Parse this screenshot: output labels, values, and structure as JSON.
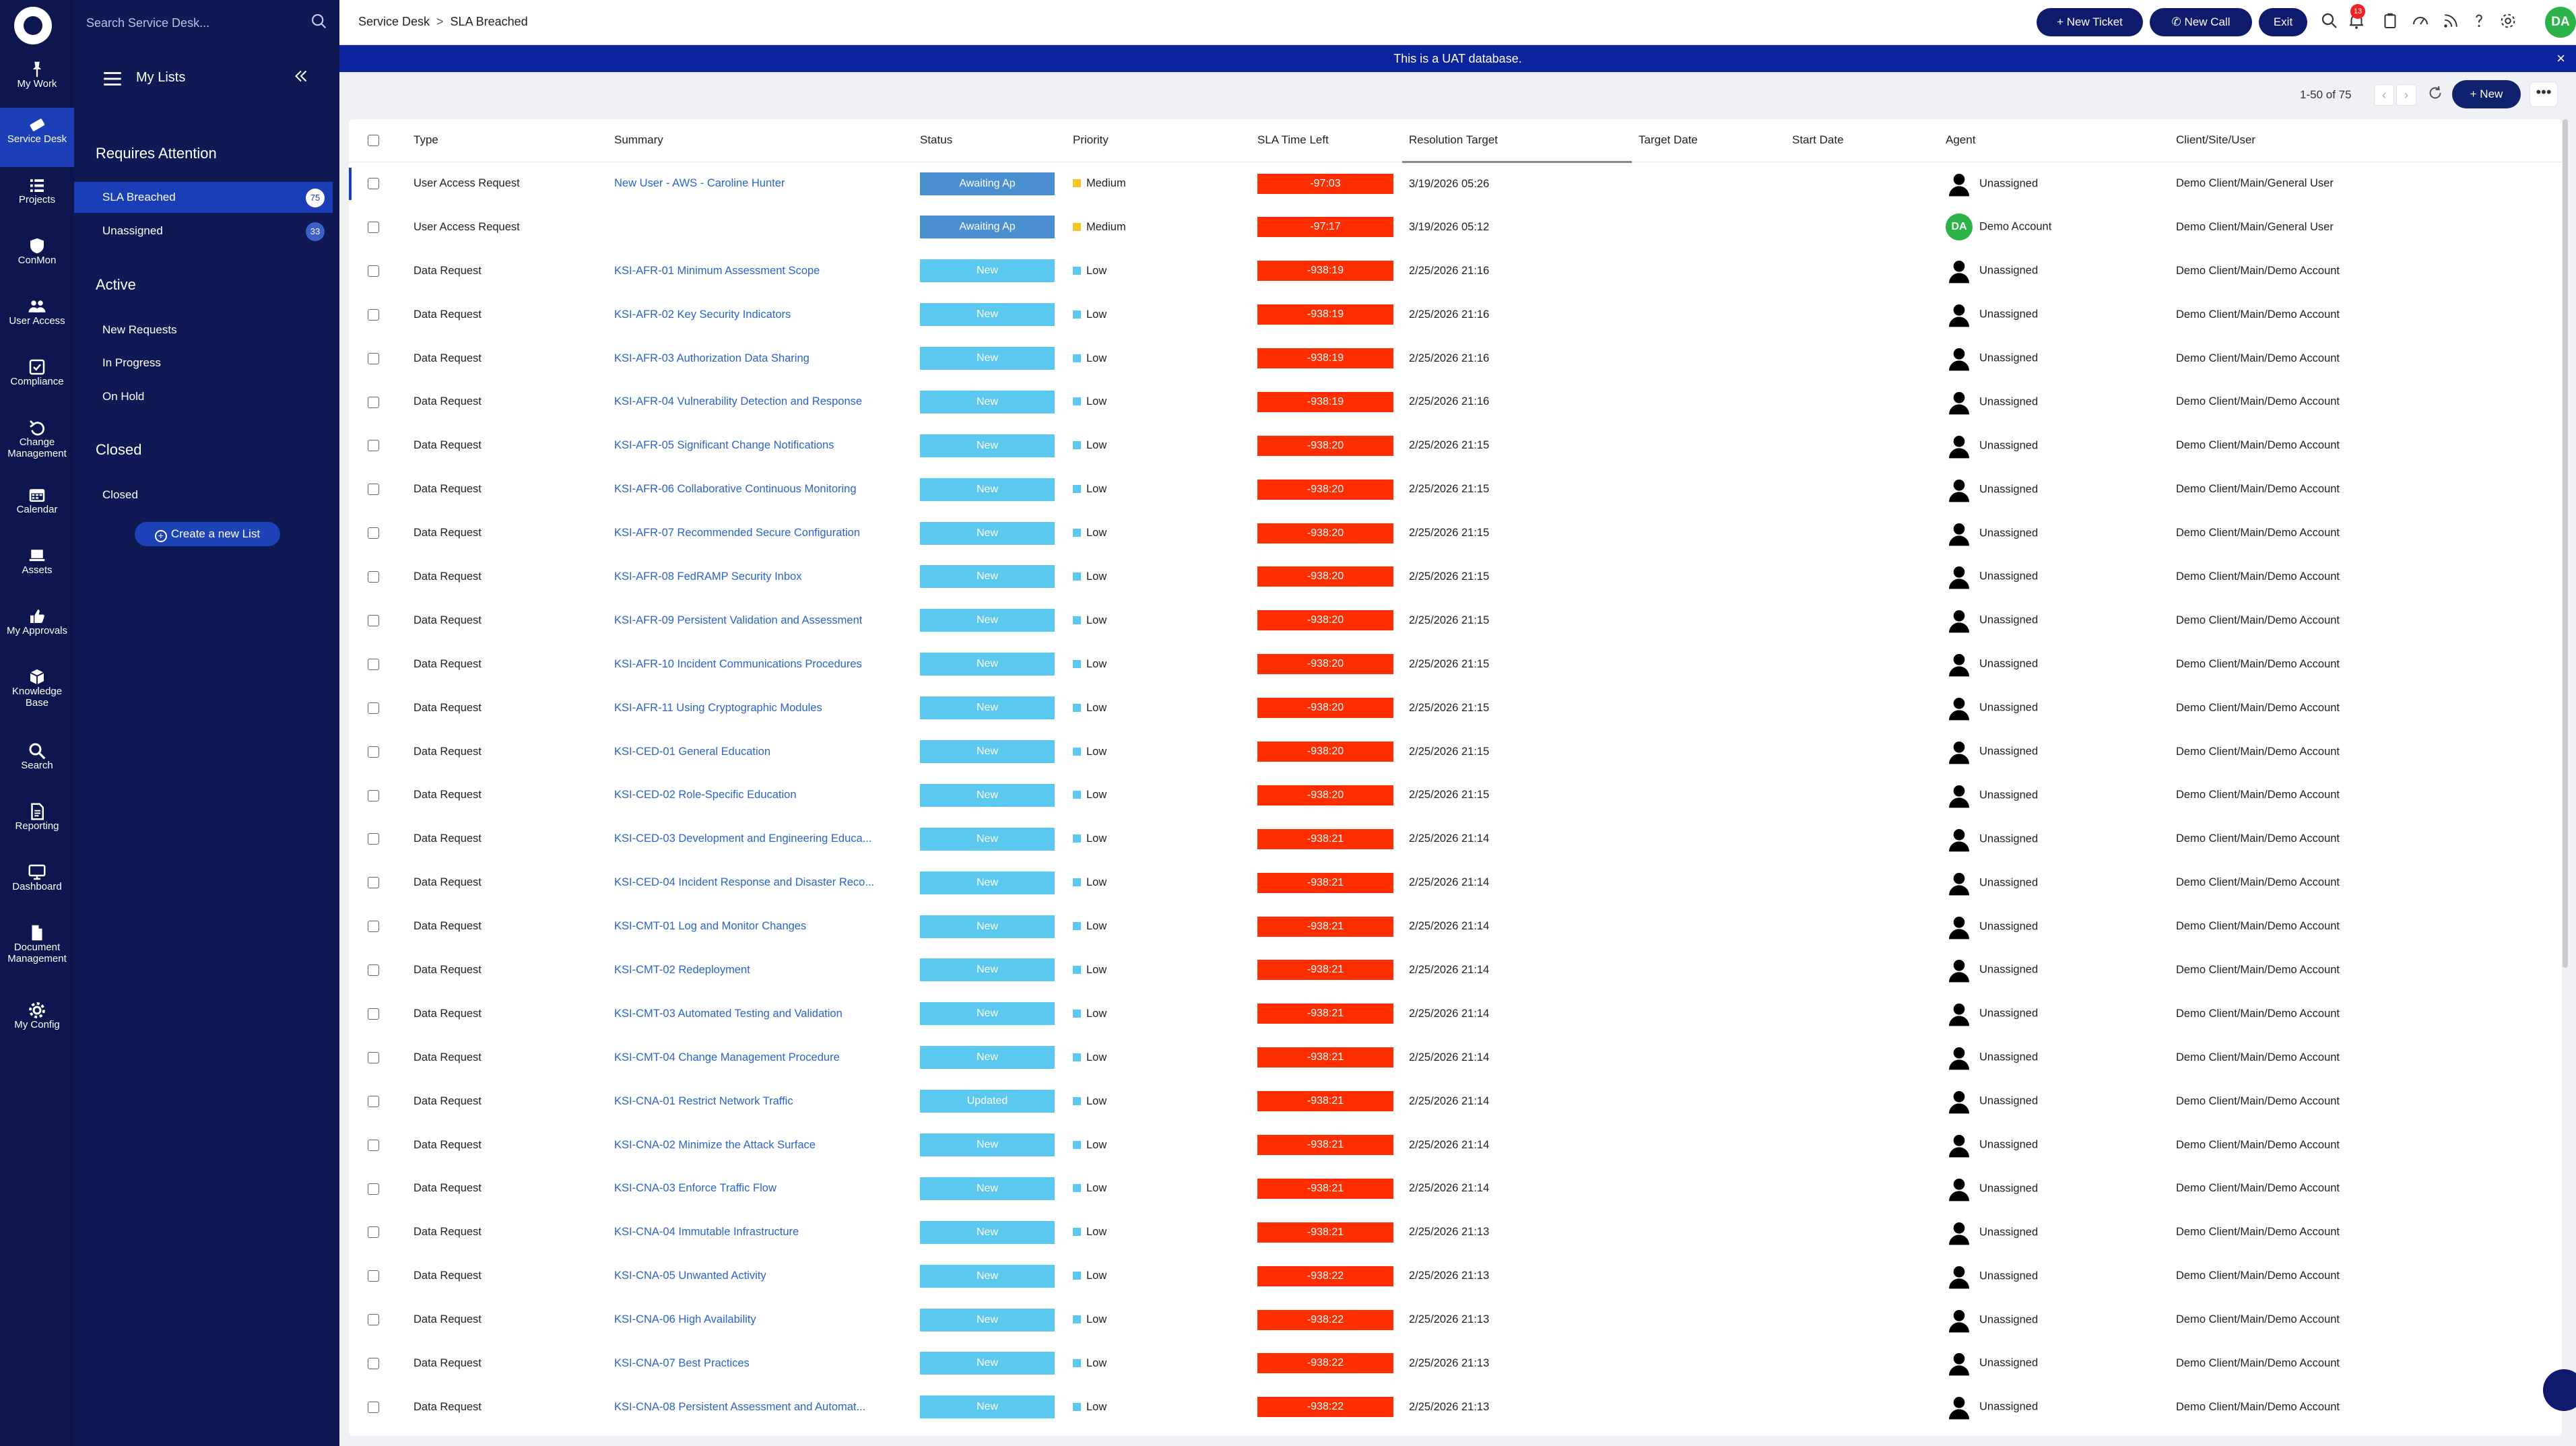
{
  "rail": [
    {
      "label": "My Work",
      "icon": "pin-icon"
    },
    {
      "label": "Service Desk",
      "icon": "ticket-icon",
      "active": true
    },
    {
      "label": "Projects",
      "icon": "list-icon"
    },
    {
      "label": "ConMon",
      "icon": "shield-icon"
    },
    {
      "label": "User Access",
      "icon": "users-icon"
    },
    {
      "label": "Compliance",
      "icon": "checkbox-icon"
    },
    {
      "label": "Change Management",
      "icon": "undo-icon"
    },
    {
      "label": "Calendar",
      "icon": "calendar-icon"
    },
    {
      "label": "Assets",
      "icon": "laptop-icon"
    },
    {
      "label": "My Approvals",
      "icon": "thumbs-up-icon"
    },
    {
      "label": "Knowledge Base",
      "icon": "cube-icon"
    },
    {
      "label": "Search",
      "icon": "search-icon"
    },
    {
      "label": "Reporting",
      "icon": "report-icon"
    },
    {
      "label": "Dashboard",
      "icon": "monitor-icon"
    },
    {
      "label": "Document Management",
      "icon": "document-icon"
    },
    {
      "label": "My Config",
      "icon": "gear-icon"
    }
  ],
  "lists_panel": {
    "search_placeholder": "Search Service Desk...",
    "title": "My Lists",
    "sections": {
      "requires_attention": "Requires Attention",
      "active": "Active",
      "closed": "Closed"
    },
    "requires_attention_items": [
      {
        "label": "SLA Breached",
        "count": "75",
        "active": true
      },
      {
        "label": "Unassigned",
        "count": "33"
      }
    ],
    "active_items": [
      {
        "label": "New Requests"
      },
      {
        "label": "In Progress"
      },
      {
        "label": "On Hold"
      }
    ],
    "closed_items": [
      {
        "label": "Closed"
      }
    ],
    "create_label": "Create a new List"
  },
  "topbar": {
    "breadcrumb_root": "Service Desk",
    "breadcrumb_sep": ">",
    "breadcrumb_current": "SLA Breached",
    "new_ticket": "+ New Ticket",
    "new_call": "New Call",
    "exit": "Exit",
    "notification_count": "13",
    "avatar_initials": "DA"
  },
  "banner": {
    "text": "This is a UAT database.",
    "close": "×"
  },
  "toolbar": {
    "pager": "1-50 of 75",
    "new_label": "+ New",
    "more": "•••",
    "prev": "‹",
    "next": "›"
  },
  "table": {
    "headers": [
      "Type",
      "Summary",
      "Status",
      "Priority",
      "SLA Time Left",
      "Resolution Target",
      "Target Date",
      "Start Date",
      "Agent",
      "Client/Site/User"
    ],
    "rows": [
      {
        "type": "User Access Request",
        "summary": "New User - AWS - Caroline Hunter",
        "status": "Awaiting Ap",
        "priority": "Medium",
        "sla": "-97:03",
        "resolution": "3/19/2026 05:26",
        "agent": "Unassigned",
        "client": "Demo Client/Main/General User",
        "selected": true
      },
      {
        "type": "User Access Request",
        "summary": "",
        "status": "Awaiting Ap",
        "priority": "Medium",
        "sla": "-97:17",
        "resolution": "3/19/2026 05:12",
        "agent": "Demo Account",
        "client": "Demo Client/Main/General User",
        "agent_avatar": "DA"
      },
      {
        "type": "Data Request",
        "summary": "KSI-AFR-01 Minimum Assessment Scope",
        "status": "New",
        "priority": "Low",
        "sla": "-938:19",
        "resolution": "2/25/2026 21:16",
        "agent": "Unassigned",
        "client": "Demo Client/Main/Demo Account"
      },
      {
        "type": "Data Request",
        "summary": "KSI-AFR-02 Key Security Indicators",
        "status": "New",
        "priority": "Low",
        "sla": "-938:19",
        "resolution": "2/25/2026 21:16",
        "agent": "Unassigned",
        "client": "Demo Client/Main/Demo Account"
      },
      {
        "type": "Data Request",
        "summary": "KSI-AFR-03 Authorization Data Sharing",
        "status": "New",
        "priority": "Low",
        "sla": "-938:19",
        "resolution": "2/25/2026 21:16",
        "agent": "Unassigned",
        "client": "Demo Client/Main/Demo Account"
      },
      {
        "type": "Data Request",
        "summary": "KSI-AFR-04 Vulnerability Detection and Response",
        "status": "New",
        "priority": "Low",
        "sla": "-938:19",
        "resolution": "2/25/2026 21:16",
        "agent": "Unassigned",
        "client": "Demo Client/Main/Demo Account"
      },
      {
        "type": "Data Request",
        "summary": "KSI-AFR-05 Significant Change Notifications",
        "status": "New",
        "priority": "Low",
        "sla": "-938:20",
        "resolution": "2/25/2026 21:15",
        "agent": "Unassigned",
        "client": "Demo Client/Main/Demo Account"
      },
      {
        "type": "Data Request",
        "summary": "KSI-AFR-06 Collaborative Continuous Monitoring",
        "status": "New",
        "priority": "Low",
        "sla": "-938:20",
        "resolution": "2/25/2026 21:15",
        "agent": "Unassigned",
        "client": "Demo Client/Main/Demo Account"
      },
      {
        "type": "Data Request",
        "summary": "KSI-AFR-07 Recommended Secure Configuration",
        "status": "New",
        "priority": "Low",
        "sla": "-938:20",
        "resolution": "2/25/2026 21:15",
        "agent": "Unassigned",
        "client": "Demo Client/Main/Demo Account"
      },
      {
        "type": "Data Request",
        "summary": "KSI-AFR-08 FedRAMP Security Inbox",
        "status": "New",
        "priority": "Low",
        "sla": "-938:20",
        "resolution": "2/25/2026 21:15",
        "agent": "Unassigned",
        "client": "Demo Client/Main/Demo Account"
      },
      {
        "type": "Data Request",
        "summary": "KSI-AFR-09 Persistent Validation and Assessment",
        "status": "New",
        "priority": "Low",
        "sla": "-938:20",
        "resolution": "2/25/2026 21:15",
        "agent": "Unassigned",
        "client": "Demo Client/Main/Demo Account"
      },
      {
        "type": "Data Request",
        "summary": "KSI-AFR-10 Incident Communications Procedures",
        "status": "New",
        "priority": "Low",
        "sla": "-938:20",
        "resolution": "2/25/2026 21:15",
        "agent": "Unassigned",
        "client": "Demo Client/Main/Demo Account"
      },
      {
        "type": "Data Request",
        "summary": "KSI-AFR-11 Using Cryptographic Modules",
        "status": "New",
        "priority": "Low",
        "sla": "-938:20",
        "resolution": "2/25/2026 21:15",
        "agent": "Unassigned",
        "client": "Demo Client/Main/Demo Account"
      },
      {
        "type": "Data Request",
        "summary": "KSI-CED-01 General Education",
        "status": "New",
        "priority": "Low",
        "sla": "-938:20",
        "resolution": "2/25/2026 21:15",
        "agent": "Unassigned",
        "client": "Demo Client/Main/Demo Account"
      },
      {
        "type": "Data Request",
        "summary": "KSI-CED-02 Role-Specific Education",
        "status": "New",
        "priority": "Low",
        "sla": "-938:20",
        "resolution": "2/25/2026 21:15",
        "agent": "Unassigned",
        "client": "Demo Client/Main/Demo Account"
      },
      {
        "type": "Data Request",
        "summary": "KSI-CED-03 Development and Engineering Educa...",
        "status": "New",
        "priority": "Low",
        "sla": "-938:21",
        "resolution": "2/25/2026 21:14",
        "agent": "Unassigned",
        "client": "Demo Client/Main/Demo Account"
      },
      {
        "type": "Data Request",
        "summary": "KSI-CED-04 Incident Response and Disaster Reco...",
        "status": "New",
        "priority": "Low",
        "sla": "-938:21",
        "resolution": "2/25/2026 21:14",
        "agent": "Unassigned",
        "client": "Demo Client/Main/Demo Account"
      },
      {
        "type": "Data Request",
        "summary": "KSI-CMT-01 Log and Monitor Changes",
        "status": "New",
        "priority": "Low",
        "sla": "-938:21",
        "resolution": "2/25/2026 21:14",
        "agent": "Unassigned",
        "client": "Demo Client/Main/Demo Account"
      },
      {
        "type": "Data Request",
        "summary": "KSI-CMT-02 Redeployment",
        "status": "New",
        "priority": "Low",
        "sla": "-938:21",
        "resolution": "2/25/2026 21:14",
        "agent": "Unassigned",
        "client": "Demo Client/Main/Demo Account"
      },
      {
        "type": "Data Request",
        "summary": "KSI-CMT-03 Automated Testing and Validation",
        "status": "New",
        "priority": "Low",
        "sla": "-938:21",
        "resolution": "2/25/2026 21:14",
        "agent": "Unassigned",
        "client": "Demo Client/Main/Demo Account"
      },
      {
        "type": "Data Request",
        "summary": "KSI-CMT-04 Change Management Procedure",
        "status": "New",
        "priority": "Low",
        "sla": "-938:21",
        "resolution": "2/25/2026 21:14",
        "agent": "Unassigned",
        "client": "Demo Client/Main/Demo Account"
      },
      {
        "type": "Data Request",
        "summary": "KSI-CNA-01 Restrict Network Traffic",
        "status": "Updated",
        "priority": "Low",
        "sla": "-938:21",
        "resolution": "2/25/2026 21:14",
        "agent": "Unassigned",
        "client": "Demo Client/Main/Demo Account"
      },
      {
        "type": "Data Request",
        "summary": "KSI-CNA-02 Minimize the Attack Surface",
        "status": "New",
        "priority": "Low",
        "sla": "-938:21",
        "resolution": "2/25/2026 21:14",
        "agent": "Unassigned",
        "client": "Demo Client/Main/Demo Account"
      },
      {
        "type": "Data Request",
        "summary": "KSI-CNA-03 Enforce Traffic Flow",
        "status": "New",
        "priority": "Low",
        "sla": "-938:21",
        "resolution": "2/25/2026 21:14",
        "agent": "Unassigned",
        "client": "Demo Client/Main/Demo Account"
      },
      {
        "type": "Data Request",
        "summary": "KSI-CNA-04 Immutable Infrastructure",
        "status": "New",
        "priority": "Low",
        "sla": "-938:21",
        "resolution": "2/25/2026 21:13",
        "agent": "Unassigned",
        "client": "Demo Client/Main/Demo Account"
      },
      {
        "type": "Data Request",
        "summary": "KSI-CNA-05 Unwanted Activity",
        "status": "New",
        "priority": "Low",
        "sla": "-938:22",
        "resolution": "2/25/2026 21:13",
        "agent": "Unassigned",
        "client": "Demo Client/Main/Demo Account"
      },
      {
        "type": "Data Request",
        "summary": "KSI-CNA-06 High Availability",
        "status": "New",
        "priority": "Low",
        "sla": "-938:22",
        "resolution": "2/25/2026 21:13",
        "agent": "Unassigned",
        "client": "Demo Client/Main/Demo Account"
      },
      {
        "type": "Data Request",
        "summary": "KSI-CNA-07 Best Practices",
        "status": "New",
        "priority": "Low",
        "sla": "-938:22",
        "resolution": "2/25/2026 21:13",
        "agent": "Unassigned",
        "client": "Demo Client/Main/Demo Account"
      },
      {
        "type": "Data Request",
        "summary": "KSI-CNA-08 Persistent Assessment and Automat...",
        "status": "New",
        "priority": "Low",
        "sla": "-938:22",
        "resolution": "2/25/2026 21:13",
        "agent": "Unassigned",
        "client": "Demo Client/Main/Demo Account"
      }
    ]
  },
  "colors": {
    "rail_bg": "#0e1650",
    "panel_bg": "#0f1a55",
    "accent": "#1a3eb5",
    "banner": "#0c239e",
    "sla_breach": "#ff2e00",
    "status_new": "#5bc8f0",
    "status_awaiting": "#4a8fd0",
    "priority_medium": "#f2c623",
    "priority_low": "#5bc8f0",
    "link": "#2b64c8"
  }
}
